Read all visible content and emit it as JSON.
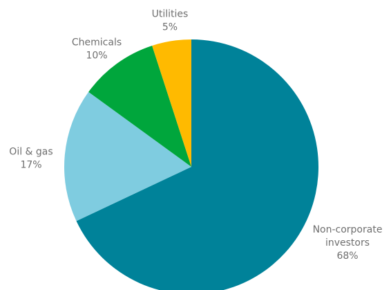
{
  "chart_data": {
    "type": "pie",
    "start_angle": "12 o'clock",
    "direction": "clockwise",
    "slices": [
      {
        "label_lines": [
          "Non-corporate",
          "investors"
        ],
        "value": 68,
        "value_label": "68%",
        "color": "#008299"
      },
      {
        "label_lines": [
          "Oil & gas"
        ],
        "value": 17,
        "value_label": "17%",
        "color": "#7fcce0"
      },
      {
        "label_lines": [
          "Chemicals"
        ],
        "value": 10,
        "value_label": "10%",
        "color": "#00a63c"
      },
      {
        "label_lines": [
          "Utilities"
        ],
        "value": 5,
        "value_label": "5%",
        "color": "#ffba00"
      }
    ]
  }
}
